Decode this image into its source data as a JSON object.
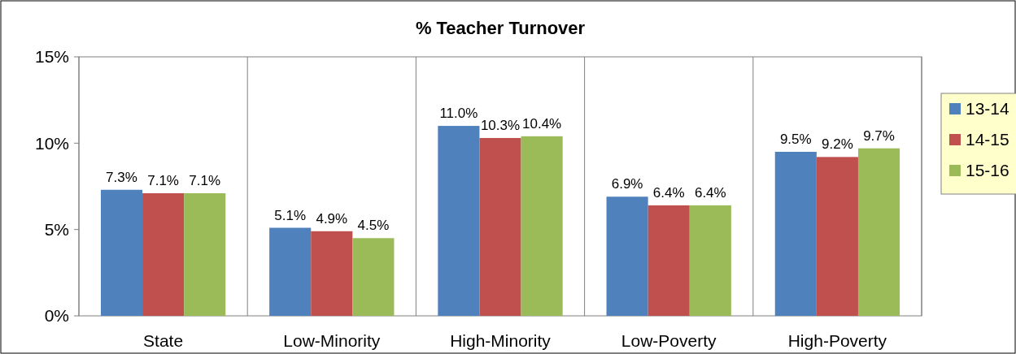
{
  "chart_data": {
    "type": "bar",
    "title": "% Teacher Turnover",
    "categories": [
      "State",
      "Low-Minority",
      "High-Minority",
      "Low-Poverty",
      "High-Poverty"
    ],
    "series": [
      {
        "name": "13-14",
        "color": "#4f81bd",
        "values": [
          7.3,
          5.1,
          11.0,
          6.9,
          9.5
        ],
        "value_labels": [
          "7.3%",
          "5.1%",
          "11.0%",
          "6.9%",
          "9.5%"
        ]
      },
      {
        "name": "14-15",
        "color": "#c0504d",
        "values": [
          7.1,
          4.9,
          10.3,
          6.4,
          9.2
        ],
        "value_labels": [
          "7.1%",
          "4.9%",
          "10.3%",
          "6.4%",
          "9.2%"
        ]
      },
      {
        "name": "15-16",
        "color": "#9bbb59",
        "values": [
          7.1,
          4.5,
          10.4,
          6.4,
          9.7
        ],
        "value_labels": [
          "7.1%",
          "4.5%",
          "10.4%",
          "6.4%",
          "9.7%"
        ]
      }
    ],
    "ylim": [
      0,
      15
    ],
    "yticks": [
      {
        "value": 0,
        "label": "0%"
      },
      {
        "value": 5,
        "label": "5%"
      },
      {
        "value": 10,
        "label": "10%"
      },
      {
        "value": 15,
        "label": "15%"
      }
    ],
    "grid": "x",
    "legend": "right"
  }
}
